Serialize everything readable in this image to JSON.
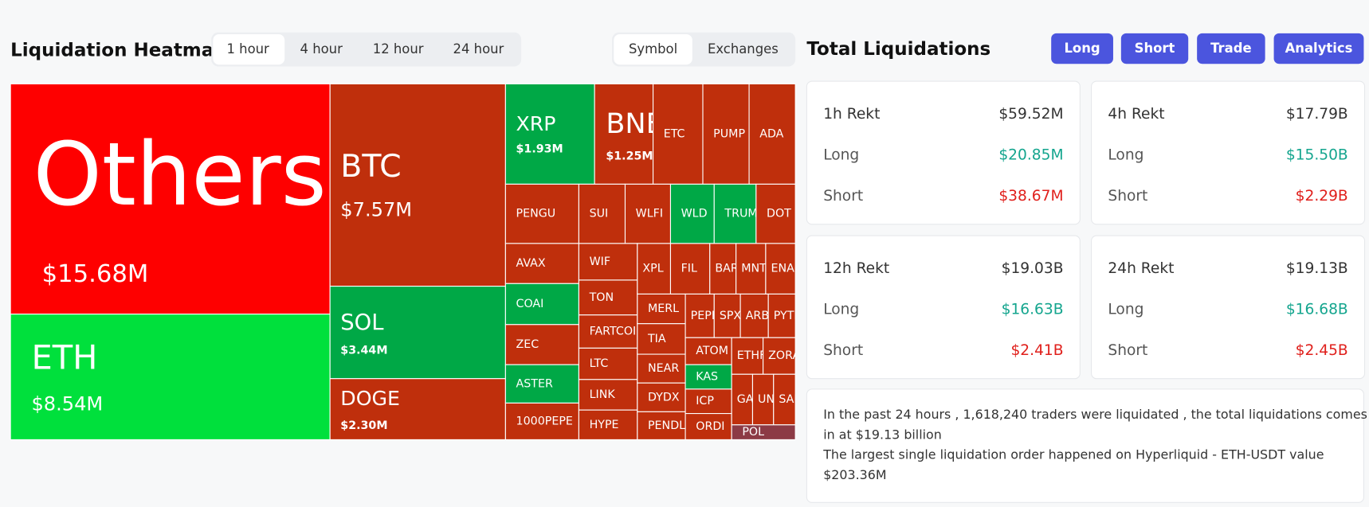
{
  "header": {
    "title": "Liquidation Heatmap",
    "time_tabs": [
      "1 hour",
      "4 hour",
      "12 hour",
      "24 hour"
    ],
    "view_tabs": [
      "Symbol",
      "Exchanges"
    ]
  },
  "heatmap": {
    "cells": [
      {
        "label": "Others",
        "value": "$15.68M"
      },
      {
        "label": "ETH",
        "value": "$8.54M"
      },
      {
        "label": "BTC",
        "value": "$7.57M"
      },
      {
        "label": "SOL",
        "value": "$3.44M"
      },
      {
        "label": "DOGE",
        "value": "$2.30M"
      },
      {
        "label": "XRP",
        "value": "$1.93M"
      },
      {
        "label": "BNB",
        "value": "$1.25M"
      },
      {
        "label": "ETC"
      },
      {
        "label": "PUMP"
      },
      {
        "label": "ADA"
      },
      {
        "label": "PENGU"
      },
      {
        "label": "SUI"
      },
      {
        "label": "WLFI"
      },
      {
        "label": "WLD"
      },
      {
        "label": "TRUMP"
      },
      {
        "label": "DOT"
      },
      {
        "label": "AVAX"
      },
      {
        "label": "COAI"
      },
      {
        "label": "ZEC"
      },
      {
        "label": "ASTER"
      },
      {
        "label": "1000PEPE"
      },
      {
        "label": "WIF"
      },
      {
        "label": "TON"
      },
      {
        "label": "FARTCOIN"
      },
      {
        "label": "LTC"
      },
      {
        "label": "LINK"
      },
      {
        "label": "HYPE"
      },
      {
        "label": "XPL"
      },
      {
        "label": "FIL"
      },
      {
        "label": "BARD"
      },
      {
        "label": "MNT"
      },
      {
        "label": "ENA"
      },
      {
        "label": "MERL"
      },
      {
        "label": "TIA"
      },
      {
        "label": "NEAR"
      },
      {
        "label": "DYDX"
      },
      {
        "label": "PENDLE"
      },
      {
        "label": "PEPE"
      },
      {
        "label": "SPX"
      },
      {
        "label": "ARB"
      },
      {
        "label": "PYTH"
      },
      {
        "label": "ATOM"
      },
      {
        "label": "KAS"
      },
      {
        "label": "ICP"
      },
      {
        "label": "ORDI"
      },
      {
        "label": "ETHFI"
      },
      {
        "label": "ZORA"
      },
      {
        "label": "GALA"
      },
      {
        "label": "UNI"
      },
      {
        "label": "SAND"
      },
      {
        "label": "POL"
      }
    ]
  },
  "summary": {
    "title": "Total Liquidations",
    "buttons": [
      "Long",
      "Short",
      "Trade",
      "Analytics"
    ],
    "cards": [
      {
        "title": "1h Rekt",
        "total": "$59.52M",
        "long_label": "Long",
        "long": "$20.85M",
        "short_label": "Short",
        "short": "$38.67M"
      },
      {
        "title": "4h Rekt",
        "total": "$17.79B",
        "long_label": "Long",
        "long": "$15.50B",
        "short_label": "Short",
        "short": "$2.29B"
      },
      {
        "title": "12h Rekt",
        "total": "$19.03B",
        "long_label": "Long",
        "long": "$16.63B",
        "short_label": "Short",
        "short": "$2.41B"
      },
      {
        "title": "24h Rekt",
        "total": "$19.13B",
        "long_label": "Long",
        "long": "$16.68B",
        "short_label": "Short",
        "short": "$2.45B"
      }
    ],
    "note": [
      "In the past 24 hours , 1,618,240 traders were liquidated , the total liquidations comes",
      "in at $19.13 billion",
      "The largest single liquidation order happened on Hyperliquid - ETH-USDT value",
      "$203.36M"
    ]
  }
}
